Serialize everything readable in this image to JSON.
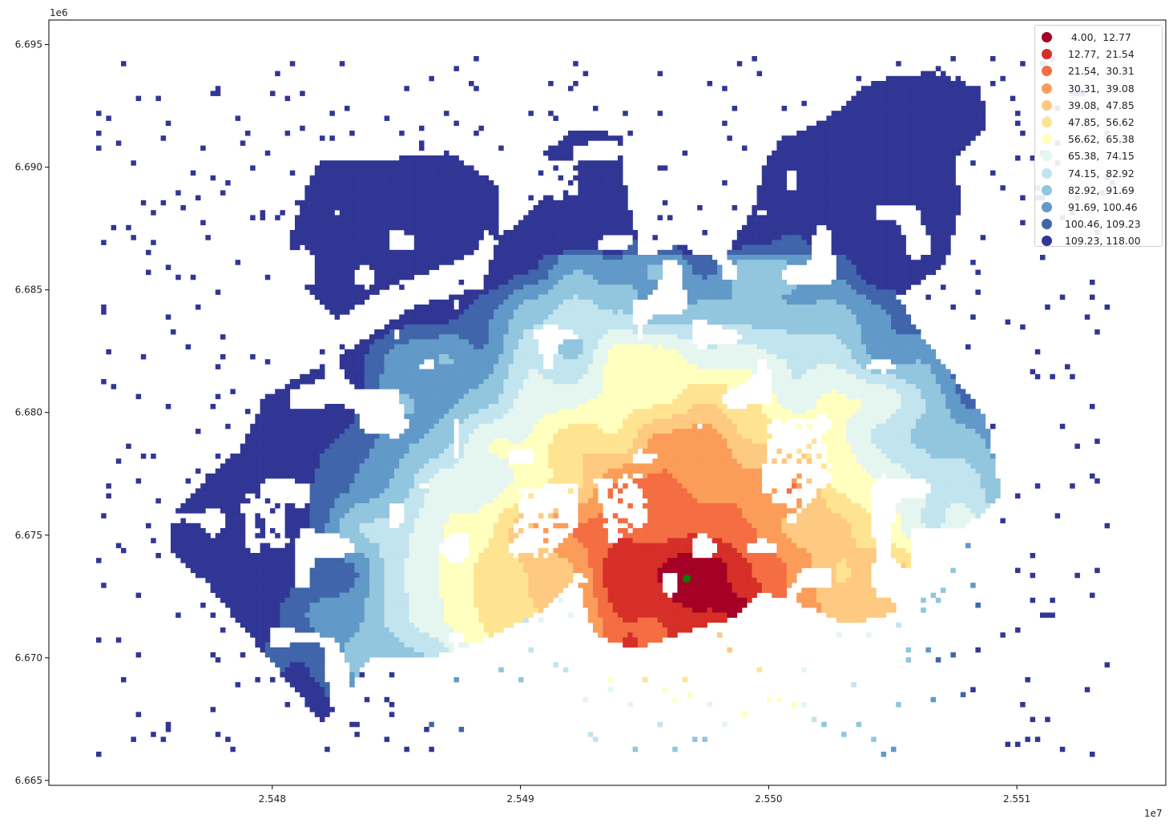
{
  "chart_data": {
    "type": "heatmap",
    "title": "",
    "xlabel": "",
    "ylabel": "",
    "x_offset": "1e7",
    "y_offset": "1e6",
    "xlim": [
      2.5471,
      2.5516
    ],
    "ylim": [
      6.6648,
      6.696
    ],
    "x_ticks": [
      {
        "value": 2.548,
        "label": "2.548"
      },
      {
        "value": 2.549,
        "label": "2.549"
      },
      {
        "value": 2.55,
        "label": "2.550"
      },
      {
        "value": 2.551,
        "label": "2.551"
      }
    ],
    "y_ticks": [
      {
        "value": 6.665,
        "label": "6.665"
      },
      {
        "value": 6.67,
        "label": "6.670"
      },
      {
        "value": 6.675,
        "label": "6.675"
      },
      {
        "value": 6.68,
        "label": "6.680"
      },
      {
        "value": 6.685,
        "label": "6.685"
      },
      {
        "value": 6.69,
        "label": "6.690"
      },
      {
        "value": 6.695,
        "label": "6.695"
      }
    ],
    "legend_position": "top-right",
    "legend": [
      {
        "label": "  4.00,  12.77",
        "color": "#a50026"
      },
      {
        "label": " 12.77,  21.54",
        "color": "#d62f27"
      },
      {
        "label": " 21.54,  30.31",
        "color": "#f46d43"
      },
      {
        "label": " 30.31,  39.08",
        "color": "#fb9d59"
      },
      {
        "label": " 39.08,  47.85",
        "color": "#fec980"
      },
      {
        "label": " 47.85,  56.62",
        "color": "#fee491"
      },
      {
        "label": " 56.62,  65.38",
        "color": "#ffffbf"
      },
      {
        "label": " 65.38,  74.15",
        "color": "#e5f5f0"
      },
      {
        "label": " 74.15,  82.92",
        "color": "#c1e4ef"
      },
      {
        "label": " 82.92,  91.69",
        "color": "#92c5de"
      },
      {
        "label": " 91.69, 100.46",
        "color": "#6199c8"
      },
      {
        "label": "100.46, 109.23",
        "color": "#4065ab"
      },
      {
        "label": "109.23, 118.00",
        "color": "#313695"
      }
    ],
    "marker": {
      "x": 2.54967,
      "y": 6.67323,
      "color": "#008000"
    }
  }
}
